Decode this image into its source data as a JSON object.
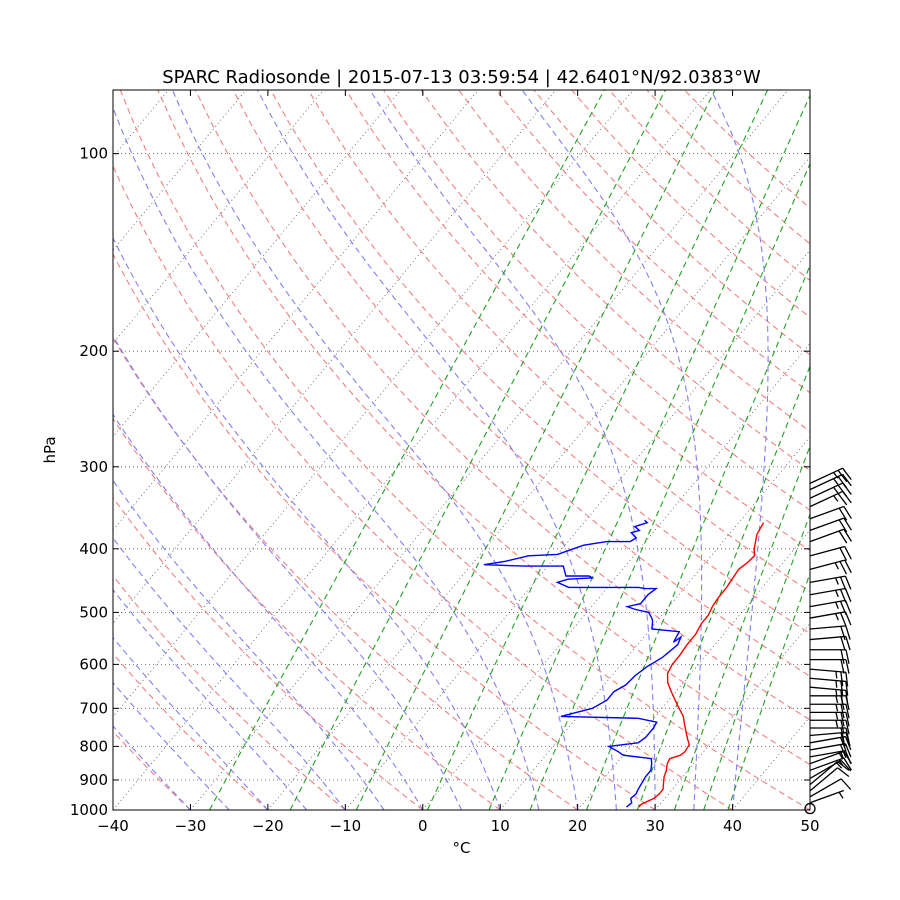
{
  "chart_data": {
    "type": "line",
    "title": "SPARC Radiosonde | 2015-07-13 03:59:54 | 42.6401°N/92.0383°W",
    "xlabel": "°C",
    "ylabel": "hPa",
    "xlim": [
      -40,
      50
    ],
    "ylim": [
      1000,
      80
    ],
    "y_scale": "log",
    "grid": true,
    "x_ticks": [
      -40,
      -30,
      -20,
      -10,
      0,
      10,
      20,
      30,
      40,
      50
    ],
    "x_tick_labels": [
      "−40",
      "−30",
      "−20",
      "−10",
      "0",
      "10",
      "20",
      "30",
      "40",
      "50"
    ],
    "y_ticks": [
      100,
      200,
      300,
      400,
      500,
      600,
      700,
      800,
      900,
      1000
    ],
    "y_tick_labels": [
      "100",
      "200",
      "300",
      "400",
      "500",
      "600",
      "700",
      "800",
      "900",
      "1000"
    ],
    "colors": {
      "temperature": "#ff0000",
      "dewpoint": "#0000ff",
      "dry_adiabats": "#f08080",
      "moist_adiabats": "#8080f0",
      "mixing_ratio": "#22a022",
      "isotherms": "#555555",
      "wind_barbs": "#000000"
    },
    "series": [
      {
        "key": "temperature",
        "x": [
          27.6,
          27.6,
          28.6,
          28.8,
          28.8,
          28.2,
          27.6,
          27.2,
          26.6,
          26.4,
          27.4,
          27.6,
          27.4,
          26.6,
          25.6,
          24.6,
          23.6,
          22.2,
          20.8,
          19.4,
          18.0,
          17.0,
          16.6,
          16.6,
          16.4,
          16.4,
          16.0,
          16.0,
          15.6,
          15.4,
          15.4,
          15.2,
          15.0,
          15.4,
          15.6,
          14.8,
          14.2,
          13.6,
          13.2
        ],
        "y": [
          990,
          980,
          960,
          945,
          930,
          910,
          890,
          870,
          850,
          835,
          825,
          815,
          795,
          780,
          760,
          740,
          720,
          700,
          680,
          660,
          640,
          620,
          600,
          580,
          560,
          540,
          520,
          505,
          490,
          475,
          460,
          445,
          430,
          420,
          410,
          400,
          390,
          380,
          365
        ]
      },
      {
        "key": "dewpoint",
        "x": [
          26.0,
          26.2,
          25.6,
          25.8,
          25.6,
          25.4,
          25.2,
          25.2,
          24.6,
          24.0,
          20.0,
          19.0,
          17.2,
          20.6,
          21.0,
          21.0,
          20.8,
          18.0,
          7.8,
          11.0,
          12.0,
          12.0,
          12.8,
          13.0,
          13.6,
          14.6,
          15.2,
          14.8,
          14.4,
          14.0,
          10.2,
          9.4,
          9.0,
          8.0,
          6.0,
          4.6,
          6.0,
          6.0,
          6.4,
          6.2,
          5.0,
          4.0,
          -5.0,
          -7.0,
          -6.0,
          -3.0,
          -3.6,
          -6.6,
          -8.0,
          -9.8,
          -13.0,
          -18.4,
          -16.0,
          -13.6,
          -10.0,
          -7.6,
          -5.0,
          -2.0,
          -1.6,
          -2.8,
          -2.0,
          -3.0,
          -1.8,
          -2.4
        ],
        "y": [
          990,
          975,
          960,
          945,
          930,
          910,
          890,
          870,
          850,
          835,
          825,
          815,
          800,
          790,
          775,
          750,
          735,
          725,
          720,
          700,
          680,
          660,
          645,
          625,
          605,
          585,
          560,
          545,
          555,
          535,
          530,
          515,
          510,
          500,
          495,
          490,
          485,
          470,
          460,
          460,
          460,
          458,
          458,
          450,
          445,
          443,
          440,
          440,
          425,
          425,
          425,
          423,
          418,
          410,
          408,
          395,
          390,
          390,
          385,
          378,
          375,
          370,
          365,
          362
        ]
      }
    ],
    "wind_barbs": {
      "p": [
        995,
        975,
        955,
        935,
        915,
        895,
        870,
        850,
        830,
        810,
        790,
        770,
        750,
        730,
        710,
        690,
        670,
        650,
        630,
        610,
        590,
        570,
        550,
        530,
        510,
        490,
        470,
        450,
        430,
        410,
        390,
        375,
        360,
        345,
        335,
        325,
        318
      ],
      "speed_kt": [
        0,
        5,
        10,
        10,
        10,
        15,
        15,
        15,
        15,
        20,
        20,
        20,
        20,
        25,
        25,
        25,
        25,
        25,
        25,
        25,
        20,
        20,
        20,
        20,
        25,
        25,
        25,
        25,
        25,
        20,
        20,
        20,
        20,
        25,
        25,
        25,
        25
      ],
      "dir_deg": [
        0,
        250,
        240,
        230,
        230,
        240,
        250,
        250,
        260,
        260,
        260,
        265,
        270,
        270,
        270,
        270,
        270,
        275,
        275,
        275,
        270,
        270,
        265,
        265,
        260,
        260,
        260,
        260,
        255,
        255,
        250,
        250,
        250,
        245,
        245,
        245,
        245
      ]
    }
  }
}
